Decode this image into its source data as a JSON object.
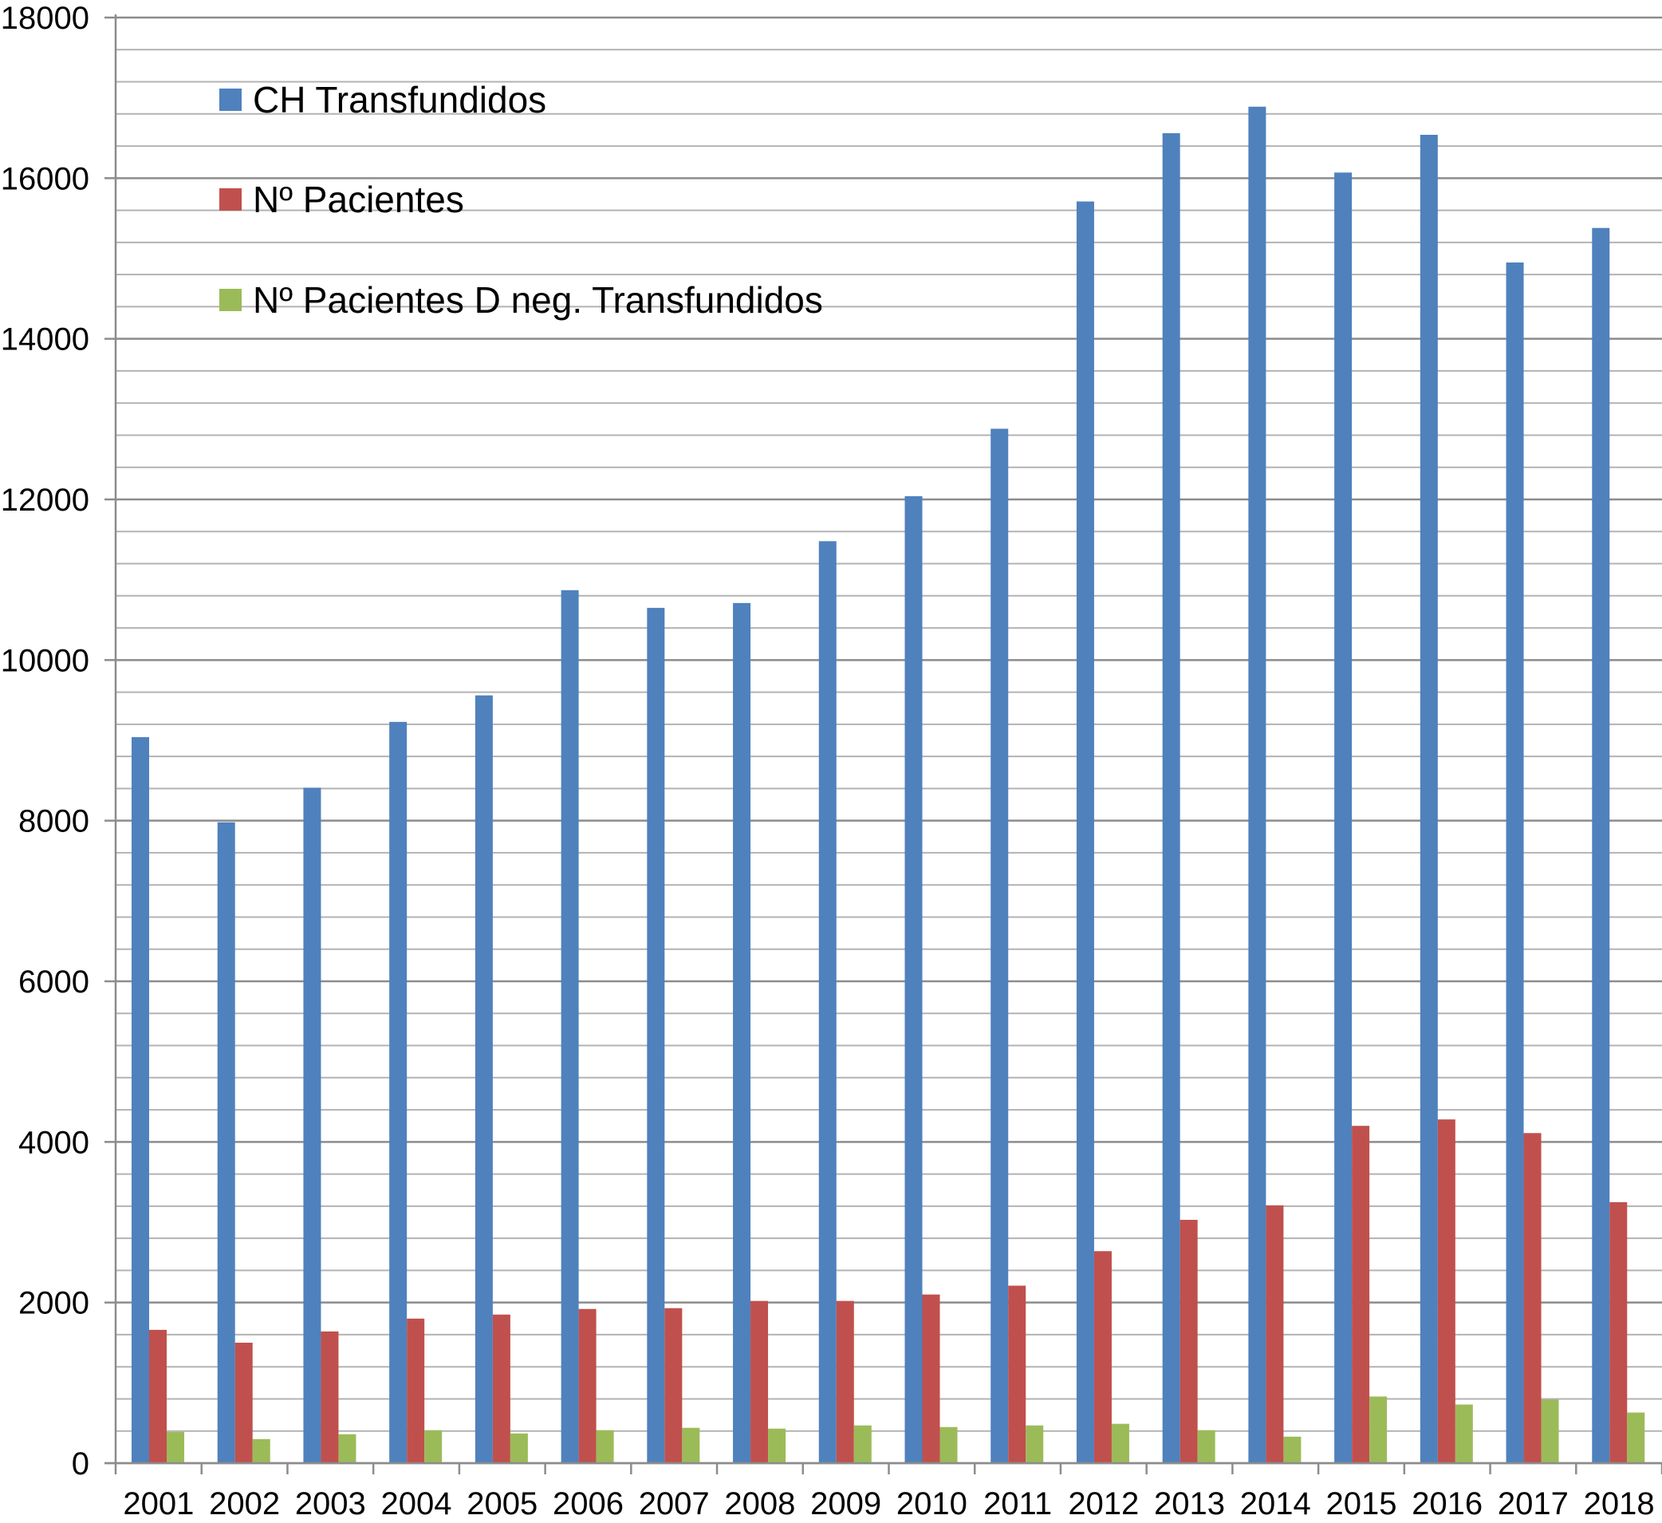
{
  "chart_data": {
    "type": "bar",
    "title": "",
    "xlabel": "",
    "ylabel": "",
    "ylim": [
      0,
      18000
    ],
    "y_major_step": 2000,
    "y_minor_step": 400,
    "grid": true,
    "legend_position": "top-left",
    "categories": [
      "2001",
      "2002",
      "2003",
      "2004",
      "2005",
      "2006",
      "2007",
      "2008",
      "2009",
      "2010",
      "2011",
      "2012",
      "2013",
      "2014",
      "2015",
      "2016",
      "2017",
      "2018"
    ],
    "y_ticks": [
      "0",
      "2000",
      "4000",
      "6000",
      "8000",
      "10000",
      "12000",
      "14000",
      "16000",
      "18000"
    ],
    "series": [
      {
        "name": "CH Transfundidos",
        "color": "#4f81bd",
        "values": [
          9040,
          7980,
          8410,
          9230,
          9560,
          10870,
          10650,
          10710,
          11480,
          12040,
          12880,
          15710,
          16560,
          16890,
          16070,
          16540,
          14950,
          15380
        ]
      },
      {
        "name": "Nº Pacientes",
        "color": "#c0504d",
        "values": [
          1660,
          1500,
          1640,
          1800,
          1850,
          1920,
          1930,
          2020,
          2020,
          2100,
          2210,
          2640,
          3030,
          3210,
          4200,
          4280,
          4110,
          3250
        ]
      },
      {
        "name": "Nº Pacientes D neg. Transfundidos",
        "color": "#9bbb59",
        "values": [
          390,
          300,
          360,
          410,
          370,
          410,
          440,
          430,
          470,
          450,
          470,
          490,
          410,
          330,
          830,
          730,
          790,
          630
        ]
      }
    ]
  }
}
